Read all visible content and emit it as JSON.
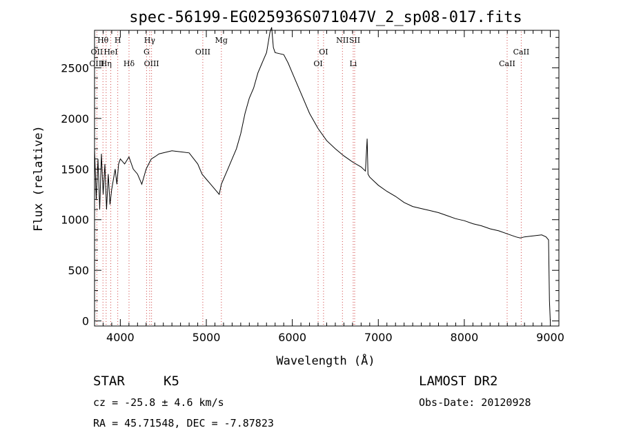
{
  "chart_data": {
    "type": "line",
    "title": "spec-56199-EG025936S071047V_2_sp08-017.fits",
    "xlabel": "Wavelength (Å)",
    "ylabel": "Flux (relative)",
    "xlim": [
      3700,
      9100
    ],
    "ylim": [
      -50,
      2870
    ],
    "xticks": [
      4000,
      5000,
      6000,
      7000,
      8000,
      9000
    ],
    "yticks": [
      0,
      500,
      1000,
      1500,
      2000,
      2500
    ],
    "grid": false,
    "series": [
      {
        "color": "#000000",
        "x": [
          3700,
          3720,
          3740,
          3760,
          3780,
          3800,
          3820,
          3840,
          3860,
          3880,
          3900,
          3920,
          3940,
          3960,
          3980,
          4000,
          4050,
          4100,
          4150,
          4200,
          4250,
          4300,
          4330,
          4360,
          4400,
          4450,
          4500,
          4600,
          4700,
          4800,
          4900,
          4950,
          5000,
          5050,
          5100,
          5150,
          5175,
          5200,
          5250,
          5300,
          5350,
          5400,
          5450,
          5500,
          5550,
          5600,
          5650,
          5700,
          5720,
          5740,
          5760,
          5780,
          5800,
          5850,
          5900,
          5950,
          6000,
          6100,
          6200,
          6300,
          6400,
          6500,
          6600,
          6700,
          6800,
          6850,
          6870,
          6880,
          6900,
          6950,
          7000,
          7100,
          7200,
          7300,
          7400,
          7500,
          7600,
          7700,
          7800,
          7900,
          8000,
          8100,
          8200,
          8300,
          8400,
          8500,
          8600,
          8650,
          8700,
          8800,
          8900,
          8950,
          8980,
          8990,
          9000
        ],
        "y": [
          1700,
          1200,
          1600,
          1100,
          1650,
          1250,
          1550,
          1100,
          1450,
          1150,
          1300,
          1400,
          1500,
          1350,
          1550,
          1600,
          1550,
          1620,
          1500,
          1450,
          1350,
          1500,
          1550,
          1600,
          1620,
          1650,
          1660,
          1680,
          1670,
          1660,
          1550,
          1450,
          1400,
          1350,
          1300,
          1250,
          1350,
          1400,
          1500,
          1600,
          1700,
          1850,
          2050,
          2200,
          2300,
          2450,
          2550,
          2650,
          2750,
          2850,
          2900,
          2700,
          2650,
          2640,
          2630,
          2550,
          2450,
          2250,
          2050,
          1900,
          1780,
          1700,
          1630,
          1570,
          1520,
          1480,
          1800,
          1450,
          1420,
          1380,
          1340,
          1280,
          1230,
          1170,
          1130,
          1110,
          1090,
          1070,
          1040,
          1010,
          990,
          960,
          940,
          910,
          890,
          860,
          830,
          820,
          830,
          840,
          850,
          830,
          800,
          200,
          0
        ]
      }
    ],
    "annotations": [
      {
        "text": "Hθ",
        "x": 3798,
        "row": 0
      },
      {
        "text": "H",
        "x": 3970,
        "row": 0
      },
      {
        "text": "Hγ",
        "x": 4341,
        "row": 0
      },
      {
        "text": "Mg",
        "x": 5175,
        "row": 0
      },
      {
        "text": "NII",
        "x": 6583,
        "row": 0
      },
      {
        "text": "SII",
        "x": 6725,
        "row": 0
      },
      {
        "text": "OII",
        "x": 3727,
        "row": 1
      },
      {
        "text": "HeI",
        "x": 3889,
        "row": 1
      },
      {
        "text": "G",
        "x": 4305,
        "row": 1
      },
      {
        "text": "OIII",
        "x": 4959,
        "row": 1
      },
      {
        "text": "OI",
        "x": 6363,
        "row": 1
      },
      {
        "text": "CaII",
        "x": 8662,
        "row": 1
      },
      {
        "text": "OIII",
        "x": 3727,
        "row": 2
      },
      {
        "text": "Hη",
        "x": 3835,
        "row": 2
      },
      {
        "text": "Hδ",
        "x": 4101,
        "row": 2
      },
      {
        "text": "OIII",
        "x": 4363,
        "row": 2
      },
      {
        "text": "OI",
        "x": 6300,
        "row": 2
      },
      {
        "text": "Li",
        "x": 6708,
        "row": 2
      },
      {
        "text": "CaII",
        "x": 8498,
        "row": 2
      }
    ],
    "line_markers": [
      3727,
      3798,
      3835,
      3889,
      3970,
      4101,
      4305,
      4341,
      4363,
      4959,
      5175,
      6300,
      6363,
      6583,
      6708,
      6725,
      8498,
      8662
    ]
  },
  "info": {
    "object_class": "STAR",
    "subclass": "K5",
    "survey": "LAMOST DR2",
    "cz": "cz = -25.8 ± 4.6 km/s",
    "obs_date": "Obs-Date: 20120928",
    "coords": "RA =  45.71548, DEC =  -7.87823"
  }
}
